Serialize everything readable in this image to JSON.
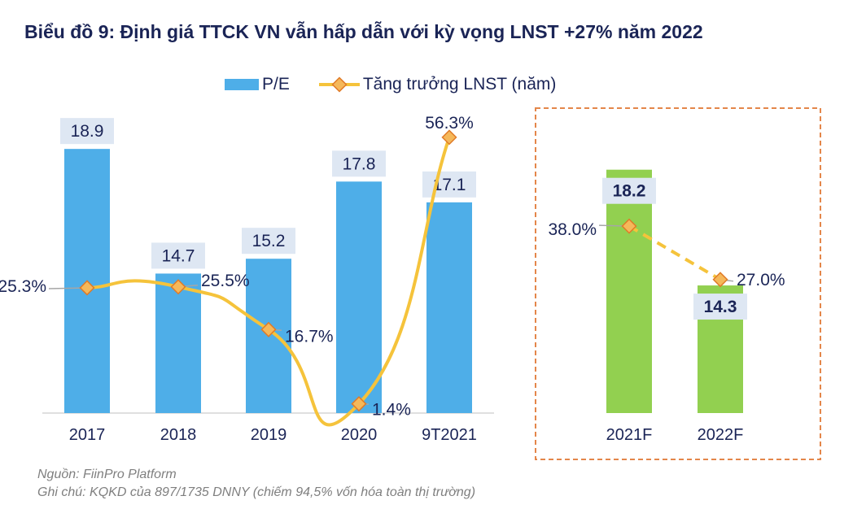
{
  "title": "Biểu đồ 9: Định giá TTCK VN vẫn hấp dẫn với kỳ vọng LNST +27% năm 2022",
  "notes": {
    "source": "Nguồn: FiinPro Platform",
    "note": "Ghi chú: KQKD của 897/1735 DNNY (chiếm 94,5% vốn hóa toàn thị trường)"
  },
  "chart_data": {
    "type": "bar+line",
    "categories": [
      "2017",
      "2018",
      "2019",
      "2020",
      "9T2021",
      "2021F",
      "2022F"
    ],
    "series": [
      {
        "name": "P/E",
        "type": "bar",
        "values": [
          18.9,
          14.7,
          15.2,
          17.8,
          17.1,
          18.2,
          14.3
        ],
        "labels": [
          "18.9",
          "14.7",
          "15.2",
          "17.8",
          "17.1",
          "18.2",
          "14.3"
        ]
      },
      {
        "name": "Tăng trưởng LNST (năm)",
        "type": "line",
        "axis": "secondary",
        "values": [
          25.3,
          25.5,
          16.7,
          1.4,
          56.3,
          38.0,
          27.0
        ],
        "labels": [
          "25.3%",
          "25.5%",
          "16.7%",
          "1.4%",
          "56.3%",
          "38.0%",
          "27.0%"
        ]
      }
    ],
    "forecast_categories": [
      "2021F",
      "2022F"
    ],
    "ylim_primary": [
      10,
      21
    ],
    "ylim_secondary": [
      0,
      60
    ],
    "grid": false,
    "legend": "top",
    "colors": {
      "bar": "#4eaee8",
      "bar_forecast": "#92d050",
      "line": "#f5c33b",
      "marker_fill": "#f5b85a",
      "marker_edge": "#e07b28",
      "text": "#1a2456",
      "forecast_box": "#e4864a",
      "label_bg": "#dee7f3"
    }
  }
}
